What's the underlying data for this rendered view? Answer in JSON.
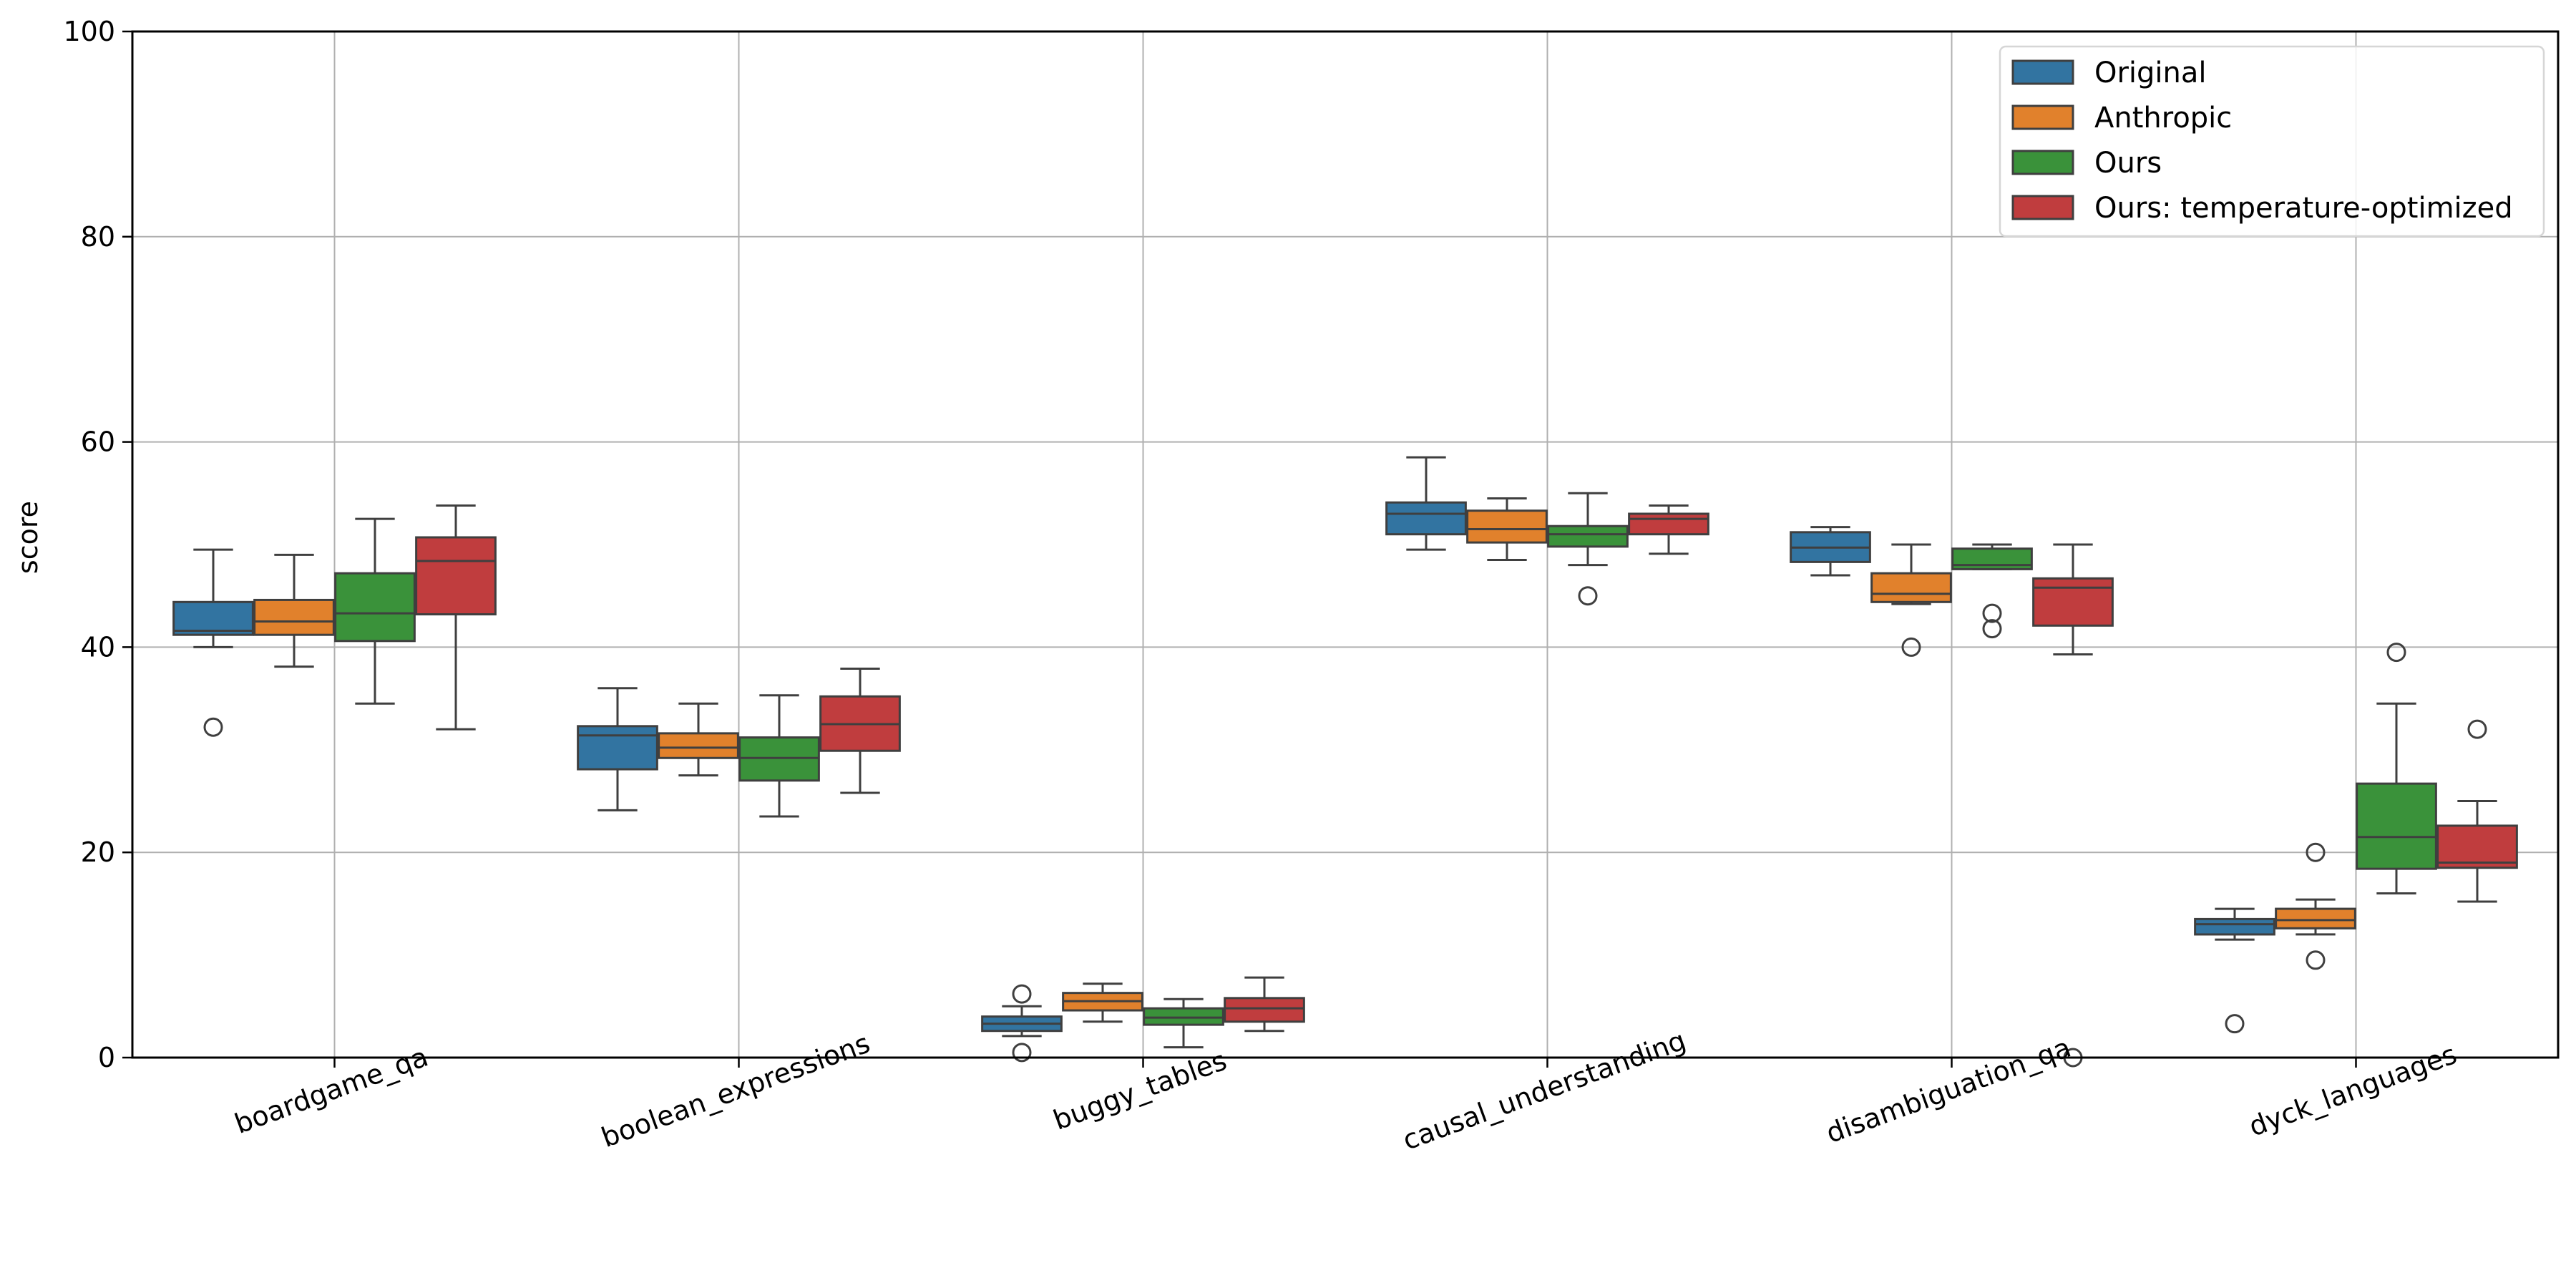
{
  "chart_data": {
    "type": "box",
    "title": "",
    "xlabel": "",
    "ylabel": "score",
    "ylim": [
      0,
      100
    ],
    "yticks": [
      0,
      20,
      40,
      60,
      80,
      100
    ],
    "grid": true,
    "legend_position": "top-right",
    "categories": [
      "boardgame_qa",
      "boolean_expressions",
      "buggy_tables",
      "causal_understanding",
      "disambiguation_qa",
      "dyck_languages"
    ],
    "series": [
      {
        "name": "Original",
        "color": "#3274a1",
        "boxes": [
          {
            "whislo": 40.0,
            "q1": 41.2,
            "med": 41.6,
            "q3": 44.4,
            "whishi": 49.5,
            "fliers": [
              32.2
            ]
          },
          {
            "whislo": 24.1,
            "q1": 28.1,
            "med": 31.4,
            "q3": 32.3,
            "whishi": 36.0,
            "fliers": []
          },
          {
            "whislo": 2.1,
            "q1": 2.6,
            "med": 3.3,
            "q3": 4.0,
            "whishi": 5.0,
            "fliers": [
              6.2,
              0.5
            ]
          },
          {
            "whislo": 49.5,
            "q1": 51.0,
            "med": 53.0,
            "q3": 54.1,
            "whishi": 58.5,
            "fliers": []
          },
          {
            "whislo": 47.0,
            "q1": 48.3,
            "med": 49.7,
            "q3": 51.2,
            "whishi": 51.7,
            "fliers": []
          },
          {
            "whislo": 11.5,
            "q1": 12.0,
            "med": 13.0,
            "q3": 13.5,
            "whishi": 14.5,
            "fliers": [
              3.3
            ]
          }
        ]
      },
      {
        "name": "Anthropic",
        "color": "#e1812c",
        "boxes": [
          {
            "whislo": 38.1,
            "q1": 41.2,
            "med": 42.5,
            "q3": 44.6,
            "whishi": 49.0,
            "fliers": []
          },
          {
            "whislo": 27.5,
            "q1": 29.2,
            "med": 30.2,
            "q3": 31.6,
            "whishi": 34.5,
            "fliers": []
          },
          {
            "whislo": 3.5,
            "q1": 4.6,
            "med": 5.5,
            "q3": 6.3,
            "whishi": 7.2,
            "fliers": []
          },
          {
            "whislo": 48.5,
            "q1": 50.2,
            "med": 51.5,
            "q3": 53.3,
            "whishi": 54.5,
            "fliers": []
          },
          {
            "whislo": 44.2,
            "q1": 44.4,
            "med": 45.2,
            "q3": 47.2,
            "whishi": 50.0,
            "fliers": [
              40.0
            ]
          },
          {
            "whislo": 12.0,
            "q1": 12.6,
            "med": 13.4,
            "q3": 14.5,
            "whishi": 15.4,
            "fliers": [
              20.0,
              9.5
            ]
          }
        ]
      },
      {
        "name": "Ours",
        "color": "#3a923a",
        "boxes": [
          {
            "whislo": 34.5,
            "q1": 40.6,
            "med": 43.3,
            "q3": 47.2,
            "whishi": 52.5,
            "fliers": []
          },
          {
            "whislo": 23.5,
            "q1": 27.0,
            "med": 29.2,
            "q3": 31.2,
            "whishi": 35.3,
            "fliers": []
          },
          {
            "whislo": 1.0,
            "q1": 3.2,
            "med": 3.9,
            "q3": 4.8,
            "whishi": 5.7,
            "fliers": []
          },
          {
            "whislo": 48.0,
            "q1": 49.8,
            "med": 51.0,
            "q3": 51.8,
            "whishi": 55.0,
            "fliers": [
              45.0
            ]
          },
          {
            "whislo": 47.6,
            "q1": 47.6,
            "med": 48.0,
            "q3": 49.6,
            "whishi": 50.0,
            "fliers": [
              43.3,
              41.8
            ]
          },
          {
            "whislo": 16.0,
            "q1": 18.4,
            "med": 21.5,
            "q3": 26.7,
            "whishi": 34.5,
            "fliers": [
              39.5
            ]
          }
        ]
      },
      {
        "name": "Ours: temperature-optimized",
        "color": "#c03d3e",
        "boxes": [
          {
            "whislo": 32.0,
            "q1": 43.2,
            "med": 48.4,
            "q3": 50.7,
            "whishi": 53.8,
            "fliers": []
          },
          {
            "whislo": 25.8,
            "q1": 29.9,
            "med": 32.5,
            "q3": 35.2,
            "whishi": 37.9,
            "fliers": []
          },
          {
            "whislo": 2.6,
            "q1": 3.5,
            "med": 4.8,
            "q3": 5.8,
            "whishi": 7.8,
            "fliers": []
          },
          {
            "whislo": 49.1,
            "q1": 51.0,
            "med": 52.5,
            "q3": 53.0,
            "whishi": 53.8,
            "fliers": []
          },
          {
            "whislo": 39.3,
            "q1": 42.1,
            "med": 45.8,
            "q3": 46.7,
            "whishi": 50.0,
            "fliers": [
              0.0
            ]
          },
          {
            "whislo": 15.2,
            "q1": 18.5,
            "med": 19.0,
            "q3": 22.6,
            "whishi": 25.0,
            "fliers": [
              32.0
            ]
          }
        ]
      }
    ]
  }
}
